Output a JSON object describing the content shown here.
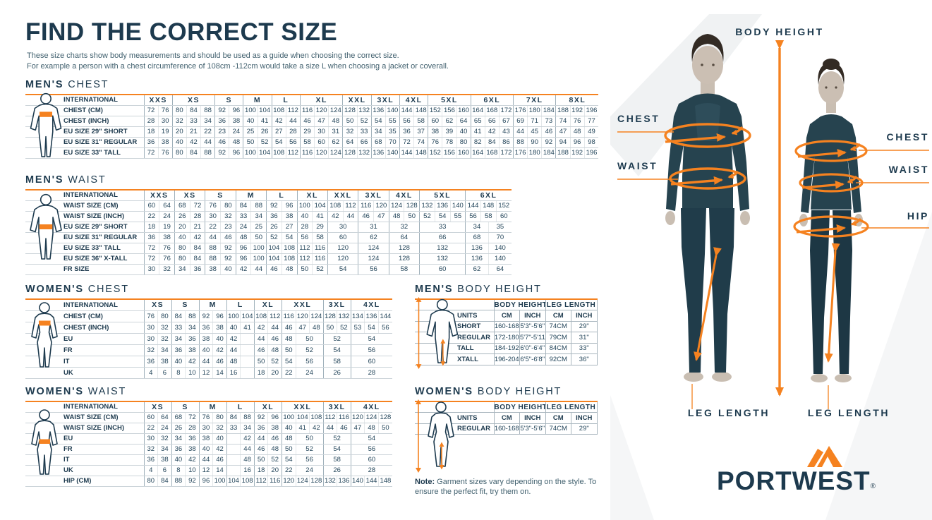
{
  "colors": {
    "navy": "#1d3a4e",
    "orange": "#f58220",
    "body_text": "#42616f"
  },
  "page": {
    "title": "FIND THE CORRECT SIZE",
    "subtitle_line1": "These size charts show body measurements and should be used as a guide when choosing the correct size.",
    "subtitle_line2": "For example a person with a chest circumference of 108cm -112cm would take a size L when choosing a jacket or coverall.",
    "note_bold": "Note:",
    "note_text": " Garment sizes vary depending on the style. To ensure the perfect fit, try them on."
  },
  "size_tables": [
    {
      "id": "mens-chest",
      "title_bold": "MEN'S",
      "title_light": "CHEST",
      "label_header": "INTERNATIONAL",
      "sizes": [
        {
          "l": "XXS",
          "u": 2
        },
        {
          "l": "XS",
          "u": 3
        },
        {
          "l": "S",
          "u": 2
        },
        {
          "l": "M",
          "u": 2
        },
        {
          "l": "L",
          "u": 2
        },
        {
          "l": "XL",
          "u": 3
        },
        {
          "l": "XXL",
          "u": 2
        },
        {
          "l": "3XL",
          "u": 2
        },
        {
          "l": "4XL",
          "u": 2
        },
        {
          "l": "5XL",
          "u": 3
        },
        {
          "l": "6XL",
          "u": 3
        },
        {
          "l": "7XL",
          "u": 3
        },
        {
          "l": "8XL",
          "u": 3
        }
      ],
      "rows": [
        {
          "label": "CHEST (CM)",
          "cells": [
            "72",
            "76",
            "80",
            "84",
            "88",
            "92",
            "96",
            "100",
            "104",
            "108",
            "112",
            "116",
            "120",
            "124",
            "128",
            "132",
            "136",
            "140",
            "144",
            "148",
            "152",
            "156",
            "160",
            "164",
            "168",
            "172",
            "176",
            "180",
            "184",
            "188",
            "192",
            "196"
          ]
        },
        {
          "label": "CHEST (INCH)",
          "cells": [
            "28",
            "30",
            "32",
            "33",
            "34",
            "36",
            "38",
            "40",
            "41",
            "42",
            "44",
            "46",
            "47",
            "48",
            "50",
            "52",
            "54",
            "55",
            "56",
            "58",
            "60",
            "62",
            "64",
            "65",
            "66",
            "67",
            "69",
            "71",
            "73",
            "74",
            "76",
            "77"
          ]
        },
        {
          "label": "EU SIZE 29\" SHORT",
          "cells": [
            "18",
            "19",
            "20",
            "21",
            "22",
            "23",
            "24",
            "25",
            "26",
            "27",
            "28",
            "29",
            "30",
            "31",
            "32",
            "33",
            "34",
            "35",
            "36",
            "37",
            "38",
            "39",
            "40",
            "41",
            "42",
            "43",
            "44",
            "45",
            "46",
            "47",
            "48",
            "49"
          ]
        },
        {
          "label": "EU SIZE 31\" REGULAR",
          "cells": [
            "36",
            "38",
            "40",
            "42",
            "44",
            "46",
            "48",
            "50",
            "52",
            "54",
            "56",
            "58",
            "60",
            "62",
            "64",
            "66",
            "68",
            "70",
            "72",
            "74",
            "76",
            "78",
            "80",
            "82",
            "84",
            "86",
            "88",
            "90",
            "92",
            "94",
            "96",
            "98"
          ]
        },
        {
          "label": "EU SIZE 33\" TALL",
          "cells": [
            "72",
            "76",
            "80",
            "84",
            "88",
            "92",
            "96",
            "100",
            "104",
            "108",
            "112",
            "116",
            "120",
            "124",
            "128",
            "132",
            "136",
            "140",
            "144",
            "148",
            "152",
            "156",
            "160",
            "164",
            "168",
            "172",
            "176",
            "180",
            "184",
            "188",
            "192",
            "196"
          ]
        }
      ]
    },
    {
      "id": "mens-waist",
      "title_bold": "MEN'S",
      "title_light": "WAIST",
      "label_header": "INTERNATIONAL",
      "sizes": [
        {
          "l": "XXS",
          "u": 2
        },
        {
          "l": "XS",
          "u": 2
        },
        {
          "l": "S",
          "u": 2
        },
        {
          "l": "M",
          "u": 2
        },
        {
          "l": "L",
          "u": 2
        },
        {
          "l": "XL",
          "u": 2
        },
        {
          "l": "XXL",
          "u": 2
        },
        {
          "l": "3XL",
          "u": 2
        },
        {
          "l": "4XL",
          "u": 2
        },
        {
          "l": "5XL",
          "u": 3
        },
        {
          "l": "6XL",
          "u": 3
        }
      ],
      "rows": [
        {
          "label": "WAIST SIZE (CM)",
          "cells": [
            "60",
            "64",
            "68",
            "72",
            "76",
            "80",
            "84",
            "88",
            "92",
            "96",
            "100",
            "104",
            "108",
            "112",
            "116",
            "120",
            "124",
            "128",
            "132",
            "136",
            "140",
            "144",
            "148",
            "152"
          ]
        },
        {
          "label": "WAIST SIZE (INCH)",
          "cells": [
            "22",
            "24",
            "26",
            "28",
            "30",
            "32",
            "33",
            "34",
            "36",
            "38",
            "40",
            "41",
            "42",
            "44",
            "46",
            "47",
            "48",
            "50",
            "52",
            "54",
            "55",
            "56",
            "58",
            "60"
          ]
        },
        {
          "label": "EU SIZE 29\" SHORT",
          "cells": [
            "18",
            "19",
            "20",
            "21",
            "22",
            "23",
            "24",
            "25",
            "26",
            "27",
            "28",
            "29",
            [
              "30",
              2
            ],
            [
              "31",
              2
            ],
            [
              "32",
              2
            ],
            [
              "33",
              3
            ],
            [
              "34",
              1.5
            ],
            [
              "35",
              1.5
            ]
          ]
        },
        {
          "label": "EU SIZE 31\" REGULAR",
          "cells": [
            "36",
            "38",
            "40",
            "42",
            "44",
            "46",
            "48",
            "50",
            "52",
            "54",
            "56",
            "58",
            [
              "60",
              2
            ],
            [
              "62",
              2
            ],
            [
              "64",
              2
            ],
            [
              "66",
              3
            ],
            [
              "68",
              1.5
            ],
            [
              "70",
              1.5
            ]
          ]
        },
        {
          "label": "EU SIZE 33\" TALL",
          "cells": [
            "72",
            "76",
            "80",
            "84",
            "88",
            "92",
            "96",
            "100",
            "104",
            "108",
            "112",
            "116",
            [
              "120",
              2
            ],
            [
              "124",
              2
            ],
            [
              "128",
              2
            ],
            [
              "132",
              3
            ],
            [
              "136",
              1.5
            ],
            [
              "140",
              1.5
            ]
          ]
        },
        {
          "label": "EU SIZE 36\" X-TALL",
          "cells": [
            "72",
            "76",
            "80",
            "84",
            "88",
            "92",
            "96",
            "100",
            "104",
            "108",
            "112",
            "116",
            [
              "120",
              2
            ],
            [
              "124",
              2
            ],
            [
              "128",
              2
            ],
            [
              "132",
              3
            ],
            [
              "136",
              1.5
            ],
            [
              "140",
              1.5
            ]
          ]
        },
        {
          "label": "FR SIZE",
          "cells": [
            "30",
            "32",
            "34",
            "36",
            "38",
            "40",
            "42",
            "44",
            "46",
            "48",
            "50",
            "52",
            [
              "54",
              2
            ],
            [
              "56",
              2
            ],
            [
              "58",
              2
            ],
            [
              "60",
              3
            ],
            [
              "62",
              1.5
            ],
            [
              "64",
              1.5
            ]
          ]
        }
      ]
    },
    {
      "id": "womens-chest",
      "title_bold": "WOMEN'S",
      "title_light": "CHEST",
      "label_header": "INTERNATIONAL",
      "sizes": [
        {
          "l": "XS",
          "u": 2
        },
        {
          "l": "S",
          "u": 2
        },
        {
          "l": "M",
          "u": 2
        },
        {
          "l": "L",
          "u": 2
        },
        {
          "l": "XL",
          "u": 2
        },
        {
          "l": "XXL",
          "u": 3
        },
        {
          "l": "3XL",
          "u": 2
        },
        {
          "l": "4XL",
          "u": 3
        }
      ],
      "rows": [
        {
          "label": "CHEST (CM)",
          "cells": [
            "76",
            "80",
            "84",
            "88",
            "92",
            "96",
            "100",
            "104",
            "108",
            "112",
            "116",
            "120",
            "124",
            "128",
            "132",
            "134",
            "136",
            "144"
          ]
        },
        {
          "label": "CHEST (INCH)",
          "cells": [
            "30",
            "32",
            "33",
            "34",
            "36",
            "38",
            "40",
            "41",
            "42",
            "44",
            "46",
            "47",
            "48",
            "50",
            "52",
            "53",
            "54",
            "56"
          ]
        },
        {
          "label": "EU",
          "cells": [
            "30",
            "32",
            "34",
            "36",
            "38",
            "40",
            "42",
            "",
            "44",
            "46",
            "48",
            [
              "50",
              2
            ],
            [
              "52",
              2
            ],
            [
              "54",
              3
            ]
          ]
        },
        {
          "label": "FR",
          "cells": [
            "32",
            "34",
            "36",
            "38",
            "40",
            "42",
            "44",
            "",
            "46",
            "48",
            "50",
            [
              "52",
              2
            ],
            [
              "54",
              2
            ],
            [
              "56",
              3
            ]
          ]
        },
        {
          "label": "IT",
          "cells": [
            "36",
            "38",
            "40",
            "42",
            "44",
            "46",
            "48",
            "",
            "50",
            "52",
            "54",
            [
              "56",
              2
            ],
            [
              "58",
              2
            ],
            [
              "60",
              3
            ]
          ]
        },
        {
          "label": "UK",
          "cells": [
            "4",
            "6",
            "8",
            "10",
            "12",
            "14",
            "16",
            "",
            "18",
            "20",
            "22",
            [
              "24",
              2
            ],
            [
              "26",
              2
            ],
            [
              "28",
              3
            ]
          ]
        }
      ]
    },
    {
      "id": "womens-waist",
      "title_bold": "WOMEN'S",
      "title_light": "WAIST",
      "label_header": "INTERNATIONAL",
      "sizes": [
        {
          "l": "XS",
          "u": 2
        },
        {
          "l": "S",
          "u": 2
        },
        {
          "l": "M",
          "u": 2
        },
        {
          "l": "L",
          "u": 2
        },
        {
          "l": "XL",
          "u": 2
        },
        {
          "l": "XXL",
          "u": 3
        },
        {
          "l": "3XL",
          "u": 2
        },
        {
          "l": "4XL",
          "u": 3
        }
      ],
      "rows": [
        {
          "label": "WAIST SIZE (CM)",
          "cells": [
            "60",
            "64",
            "68",
            "72",
            "76",
            "80",
            "84",
            "88",
            "92",
            "96",
            "100",
            "104",
            "108",
            "112",
            "116",
            "120",
            "124",
            "128"
          ]
        },
        {
          "label": "WAIST SIZE (INCH)",
          "cells": [
            "22",
            "24",
            "26",
            "28",
            "30",
            "32",
            "33",
            "34",
            "36",
            "38",
            "40",
            "41",
            "42",
            "44",
            "46",
            "47",
            "48",
            "50"
          ]
        },
        {
          "label": "EU",
          "cells": [
            "30",
            "32",
            "34",
            "36",
            "38",
            "40",
            "",
            "42",
            "44",
            "46",
            "48",
            [
              "50",
              2
            ],
            [
              "52",
              2
            ],
            [
              "54",
              3
            ]
          ]
        },
        {
          "label": "FR",
          "cells": [
            "32",
            "34",
            "36",
            "38",
            "40",
            "42",
            "",
            "44",
            "46",
            "48",
            "50",
            [
              "52",
              2
            ],
            [
              "54",
              2
            ],
            [
              "56",
              3
            ]
          ]
        },
        {
          "label": "IT",
          "cells": [
            "36",
            "38",
            "40",
            "42",
            "44",
            "46",
            "",
            "48",
            "50",
            "52",
            "54",
            [
              "56",
              2
            ],
            [
              "58",
              2
            ],
            [
              "60",
              3
            ]
          ]
        },
        {
          "label": "UK",
          "cells": [
            "4",
            "6",
            "8",
            "10",
            "12",
            "14",
            "",
            "16",
            "18",
            "20",
            "22",
            [
              "24",
              2
            ],
            [
              "26",
              2
            ],
            [
              "28",
              3
            ]
          ]
        },
        {
          "label": "HIP (CM)",
          "cells": [
            "80",
            "84",
            "88",
            "92",
            "96",
            "100",
            "104",
            "108",
            "112",
            "116",
            "120",
            "124",
            "128",
            "132",
            "136",
            "140",
            "144",
            "148"
          ]
        }
      ]
    }
  ],
  "height_tables": [
    {
      "id": "mens-body-height",
      "title_bold": "MEN'S",
      "title_light": "BODY HEIGHT",
      "group_headers": [
        "BODY HEIGHT",
        "LEG LENGTH"
      ],
      "units_label": "UNITS",
      "col_headers": [
        "CM",
        "INCH",
        "CM",
        "INCH"
      ],
      "rows": [
        {
          "label": "SHORT",
          "cells": [
            "160-168",
            "5'3\"-5'6\"",
            "74CM",
            "29\""
          ]
        },
        {
          "label": "REGULAR",
          "cells": [
            "172-180",
            "5'7\"-5'11\"",
            "79CM",
            "31\""
          ]
        },
        {
          "label": "TALL",
          "cells": [
            "184-192",
            "6'0\"-6'4\"",
            "84CM",
            "33\""
          ]
        },
        {
          "label": "XTALL",
          "cells": [
            "196-204",
            "6'5\"-6'8\"",
            "92CM",
            "36\""
          ]
        }
      ]
    },
    {
      "id": "womens-body-height",
      "title_bold": "WOMEN'S",
      "title_light": "BODY HEIGHT",
      "group_headers": [
        "BODY HEIGHT",
        "LEG LENGTH"
      ],
      "units_label": "UNITS",
      "col_headers": [
        "CM",
        "INCH",
        "CM",
        "INCH"
      ],
      "rows": [
        {
          "label": "REGULAR",
          "cells": [
            "160-168",
            "5'3\"-5'6\"",
            "74CM",
            "29\""
          ]
        }
      ]
    }
  ],
  "figure_panel": {
    "body_height_label": "BODY HEIGHT",
    "man_chest_label": "CHEST",
    "man_waist_label": "WAIST",
    "woman_chest_label": "CHEST",
    "woman_waist_label": "WAIST",
    "woman_hip_label": "HIP",
    "leg_length_left": "LEG LENGTH",
    "leg_length_right": "LEG LENGTH"
  },
  "logo": {
    "text": "PORTWEST",
    "registered": "®"
  }
}
